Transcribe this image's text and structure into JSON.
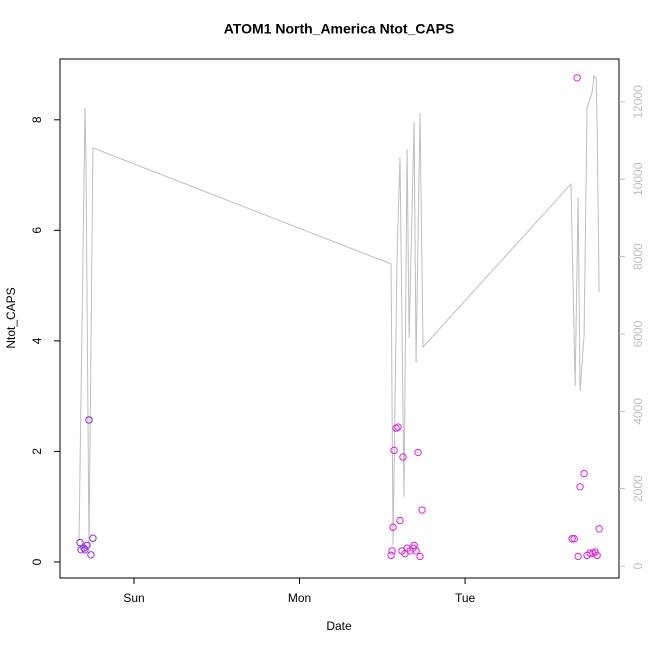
{
  "chart_data": {
    "type": "scatter",
    "title": "ATOM1 North_America Ntot_CAPS",
    "x_label": "Date",
    "y_label": "Ntot_CAPS",
    "xlim": [
      -0.447,
      2.93
    ],
    "xticks": [
      {
        "value": 0,
        "label": "Sun"
      },
      {
        "value": 1,
        "label": "Mon"
      },
      {
        "value": 2,
        "label": "Tue"
      }
    ],
    "ylim": [
      -0.29,
      9.1
    ],
    "yticks": [
      0,
      2,
      4,
      6,
      8
    ],
    "y2lim": [
      -310,
      13110
    ],
    "y2ticks": [
      0,
      2000,
      4000,
      6000,
      8000,
      10000,
      12000
    ],
    "y2_color": "#bebebe",
    "series": [
      {
        "type": "line",
        "axis": "y2",
        "color": "#bebebe",
        "x": [
          -0.332,
          -0.296,
          -0.29,
          -0.272,
          -0.248,
          1.553,
          1.565,
          1.589,
          1.607,
          1.631,
          1.65,
          1.662,
          1.692,
          1.704,
          1.728,
          1.746,
          2.64,
          2.665,
          2.683,
          2.695,
          2.719,
          2.737,
          2.767,
          2.779,
          2.792,
          2.798,
          2.81
        ],
        "values": [
          672,
          11844,
          10499,
          465,
          10810,
          7810,
          543,
          7965,
          10577,
          1784,
          10784,
          5896,
          11482,
          5250,
          11715,
          5664,
          9879,
          4655,
          9542,
          4525,
          5974,
          11844,
          12232,
          12671,
          12620,
          11327,
          7086
        ]
      },
      {
        "type": "scatter",
        "x": [
          -0.326,
          -0.32,
          -0.302,
          -0.284,
          -0.272,
          -0.26,
          -0.248,
          -0.296,
          1.553,
          1.559,
          1.565,
          1.571,
          1.583,
          1.595,
          1.607,
          1.619,
          1.625,
          1.637,
          1.65,
          1.668,
          1.686,
          1.692,
          1.704,
          1.716,
          1.728,
          1.74,
          2.647,
          2.659,
          2.677,
          2.683,
          2.695,
          2.719,
          2.737,
          2.755,
          2.773,
          2.785,
          2.798,
          2.81
        ],
        "values": [
          0.35,
          0.22,
          0.25,
          0.3,
          2.57,
          0.13,
          0.43,
          0.22,
          0.12,
          0.2,
          0.63,
          2.02,
          2.42,
          2.44,
          0.75,
          0.2,
          1.9,
          0.15,
          0.25,
          0.2,
          0.25,
          0.3,
          0.2,
          1.98,
          0.1,
          0.94,
          0.42,
          0.42,
          8.76,
          0.1,
          1.36,
          1.6,
          0.12,
          0.16,
          0.16,
          0.18,
          0.12,
          0.6
        ],
        "colors": [
          "#8a2be2",
          "#8a2be2",
          "#8a2be2",
          "#8a2be2",
          "#8a2be2",
          "#8a2be2",
          "#8a2be2",
          "#8a2be2",
          "#e020e0",
          "#e020e0",
          "#e020e0",
          "#e020e0",
          "#e020e0",
          "#e020e0",
          "#e020e0",
          "#e020e0",
          "#e020e0",
          "#e020e0",
          "#e020e0",
          "#e020e0",
          "#e020e0",
          "#e020e0",
          "#e020e0",
          "#e020e0",
          "#e020e0",
          "#e020e0",
          "#e020e0",
          "#e020e0",
          "#e020e0",
          "#e020e0",
          "#e020e0",
          "#e020e0",
          "#e020e0",
          "#e020e0",
          "#e020e0",
          "#e020e0",
          "#e020e0",
          "#e020e0"
        ]
      }
    ]
  }
}
